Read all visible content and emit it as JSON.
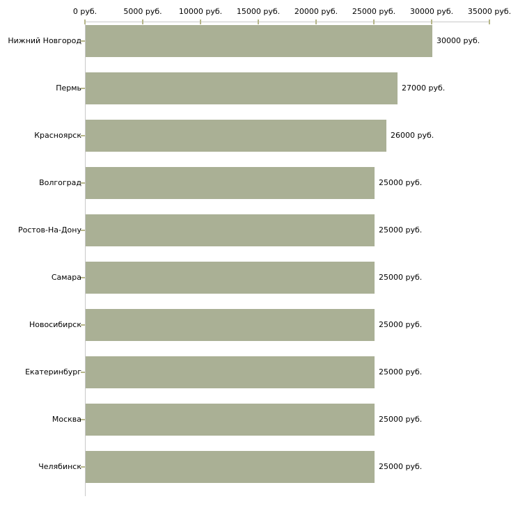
{
  "chart_data": {
    "type": "bar",
    "orientation": "horizontal",
    "title": "",
    "xlabel": "",
    "ylabel": "",
    "grid": "off",
    "legend": "none",
    "categories": [
      "Нижний Новгород",
      "Пермь",
      "Красноярск",
      "Волгоград",
      "Ростов-На-Дону",
      "Самара",
      "Новосибирск",
      "Екатеринбург",
      "Москва",
      "Челябинск"
    ],
    "values": [
      30000,
      27000,
      26000,
      25000,
      25000,
      25000,
      25000,
      25000,
      25000,
      25000
    ],
    "value_labels": [
      "30000 руб.",
      "27000 руб.",
      "26000 руб.",
      "25000 руб.",
      "25000 руб.",
      "25000 руб.",
      "25000 руб.",
      "25000 руб.",
      "25000 руб.",
      "25000 руб."
    ],
    "x_axis": {
      "position": "top",
      "min": 0,
      "max": 35000,
      "tick_values": [
        0,
        5000,
        10000,
        15000,
        20000,
        25000,
        30000,
        35000
      ],
      "tick_labels": [
        "0 руб.",
        "5000 руб.",
        "10000 руб.",
        "15000 руб.",
        "20000 руб.",
        "25000 руб.",
        "30000 руб.",
        "35000 руб."
      ]
    },
    "unit_suffix": " руб."
  },
  "colors": {
    "bar_fill": "#aab095",
    "axis_line": "#c8c8c8",
    "tick_mark": "#b6b689",
    "label_text": "#000000",
    "background": "#ffffff"
  }
}
